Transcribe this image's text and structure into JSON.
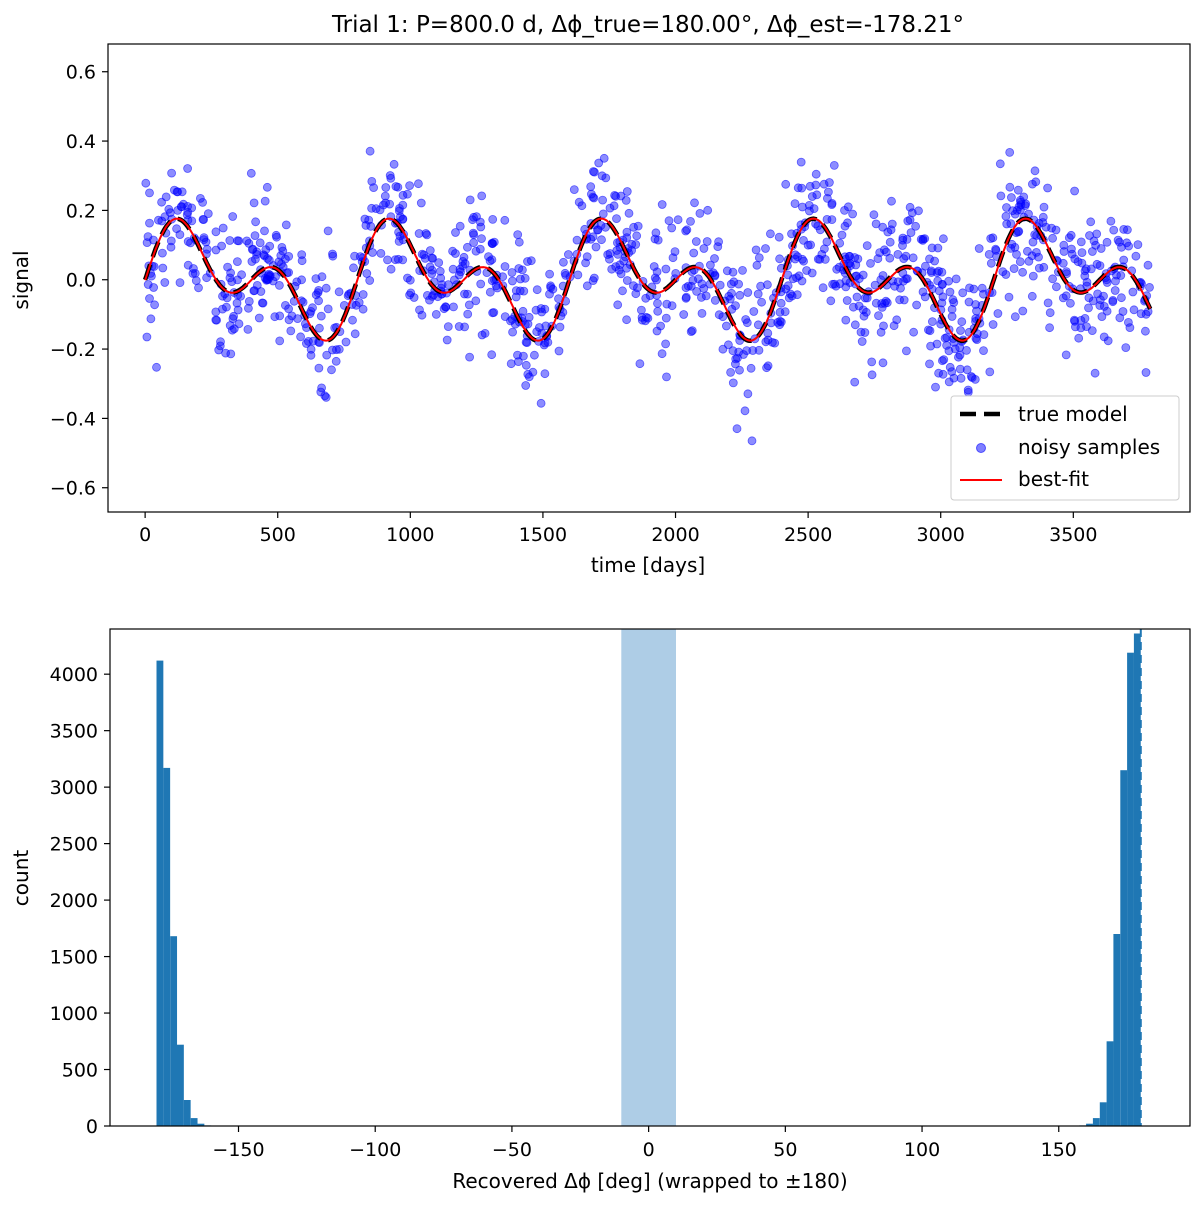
{
  "chart_data": [
    {
      "type": "line",
      "title": "Trial 1: P=800.0 d, Δϕ_true=180.00°, Δϕ_est=-178.21°",
      "xlabel": "time [days]",
      "ylabel": "signal",
      "xlim": [
        -140,
        3940
      ],
      "ylim": [
        -0.67,
        0.68
      ],
      "xticks": [
        0,
        500,
        1000,
        1500,
        2000,
        2500,
        3000,
        3500
      ],
      "xtick_labels": [
        "0",
        "500",
        "1000",
        "1500",
        "2000",
        "2500",
        "3000",
        "3500"
      ],
      "yticks": [
        -0.6,
        -0.4,
        -0.2,
        0.0,
        0.2,
        0.4,
        0.6
      ],
      "ytick_labels": [
        "−0.6",
        "−0.4",
        "−0.2",
        "0.0",
        "0.2",
        "0.4",
        "0.6"
      ],
      "grid": false,
      "legend_position": "lower-right",
      "model": {
        "amplitude": 0.1,
        "period_days": 800.0,
        "second_period_days": 400.0,
        "delta_phi_true_deg": 180.0,
        "delta_phi_est_deg": -178.21,
        "t_start": 0,
        "t_end": 3790
      },
      "series": [
        {
          "name": "true model",
          "kind": "line",
          "color": "#000000",
          "style": "dashed",
          "x_range": [
            0,
            3790
          ]
        },
        {
          "name": "noisy samples",
          "kind": "scatter",
          "color": "#0000ff",
          "noise_sigma": 0.1,
          "n_points": 1200,
          "x_range": [
            0,
            3790
          ]
        },
        {
          "name": "best-fit",
          "kind": "line",
          "color": "#ff0000",
          "style": "solid",
          "x_range": [
            0,
            3790
          ]
        }
      ]
    },
    {
      "type": "bar",
      "xlabel": "Recovered Δϕ [deg] (wrapped to ±180)",
      "ylabel": "count",
      "xlim": [
        -197,
        198
      ],
      "ylim": [
        0,
        4400
      ],
      "xticks": [
        -150,
        -100,
        -50,
        0,
        50,
        100,
        150
      ],
      "xtick_labels": [
        "−150",
        "−100",
        "−50",
        "0",
        "50",
        "100",
        "150"
      ],
      "yticks": [
        0,
        500,
        1000,
        1500,
        2000,
        2500,
        3000,
        3500,
        4000
      ],
      "ytick_labels": [
        "0",
        "500",
        "1000",
        "1500",
        "2000",
        "2500",
        "3000",
        "3500",
        "4000"
      ],
      "bar_color": "#1f77b4",
      "shaded_band": {
        "x_range": [
          -10,
          10
        ],
        "color": "#aecde6"
      },
      "true_value_line": {
        "x": 180,
        "color": "#1f77b4",
        "style": "dashed"
      },
      "bins": [
        {
          "x0": -180.0,
          "x1": -177.5,
          "count": 4120
        },
        {
          "x0": -177.5,
          "x1": -175.0,
          "count": 3170
        },
        {
          "x0": -175.0,
          "x1": -172.5,
          "count": 1680
        },
        {
          "x0": -172.5,
          "x1": -170.0,
          "count": 720
        },
        {
          "x0": -170.0,
          "x1": -167.5,
          "count": 230
        },
        {
          "x0": -167.5,
          "x1": -165.0,
          "count": 70
        },
        {
          "x0": -165.0,
          "x1": -162.5,
          "count": 20
        },
        {
          "x0": -162.5,
          "x1": -160.0,
          "count": 5
        },
        {
          "x0": 157.5,
          "x1": 160.0,
          "count": 5
        },
        {
          "x0": 160.0,
          "x1": 162.5,
          "count": 20
        },
        {
          "x0": 162.5,
          "x1": 165.0,
          "count": 70
        },
        {
          "x0": 165.0,
          "x1": 167.5,
          "count": 210
        },
        {
          "x0": 167.5,
          "x1": 170.0,
          "count": 750
        },
        {
          "x0": 170.0,
          "x1": 172.5,
          "count": 1700
        },
        {
          "x0": 172.5,
          "x1": 175.0,
          "count": 3150
        },
        {
          "x0": 175.0,
          "x1": 177.5,
          "count": 4190
        },
        {
          "x0": 177.5,
          "x1": 180.0,
          "count": 4360
        }
      ]
    }
  ]
}
